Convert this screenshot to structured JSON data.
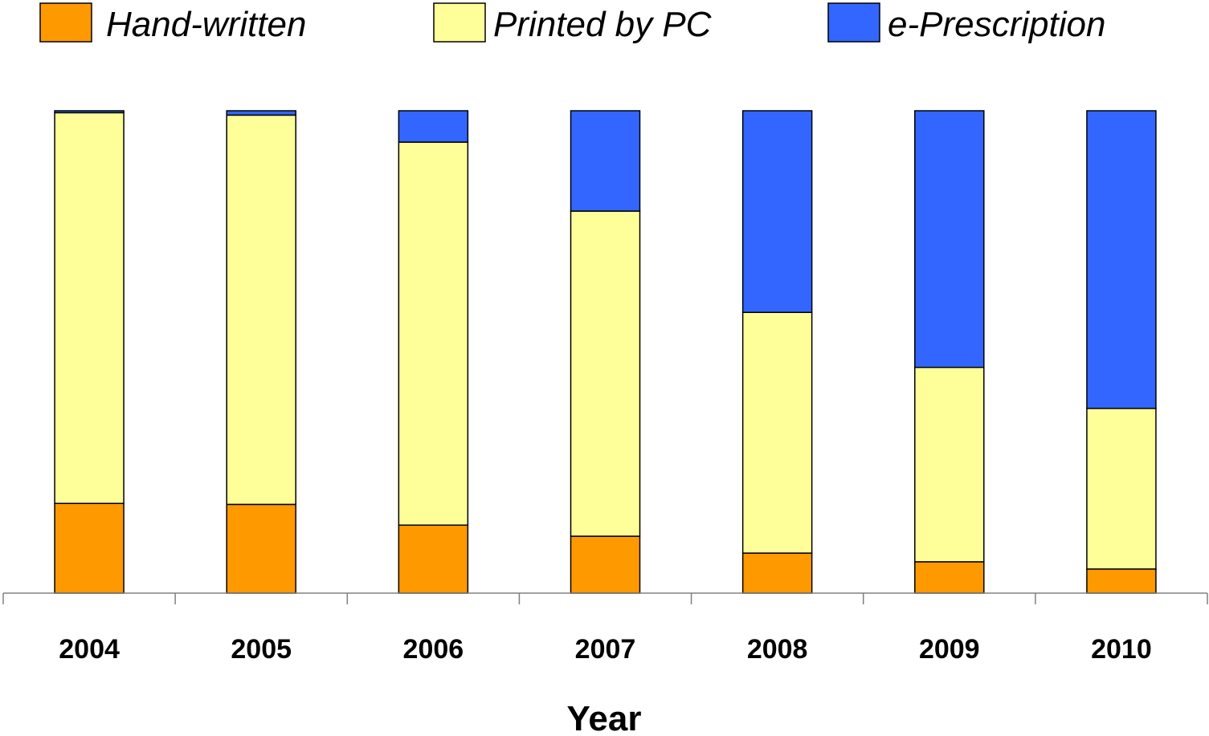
{
  "chart_data": {
    "type": "bar",
    "stacked": true,
    "normalized": true,
    "categories": [
      "2004",
      "2005",
      "2006",
      "2007",
      "2008",
      "2009",
      "2010"
    ],
    "series": [
      {
        "name": "Hand-written",
        "color": "#FF9900",
        "values": [
          18.6,
          18.4,
          14.1,
          11.8,
          8.3,
          6.5,
          5.0
        ]
      },
      {
        "name": "Printed by PC",
        "color": "#FFFF99",
        "values": [
          81.0,
          80.7,
          79.4,
          67.4,
          49.9,
          40.3,
          33.3
        ]
      },
      {
        "name": "e-Prescription",
        "color": "#3366FF",
        "values": [
          0.4,
          0.9,
          6.5,
          20.8,
          41.8,
          53.2,
          61.7
        ]
      }
    ],
    "ylim": [
      0,
      100
    ],
    "xlabel": "Year",
    "ylabel": "",
    "title": "",
    "legend_position": "top",
    "grid": false
  }
}
